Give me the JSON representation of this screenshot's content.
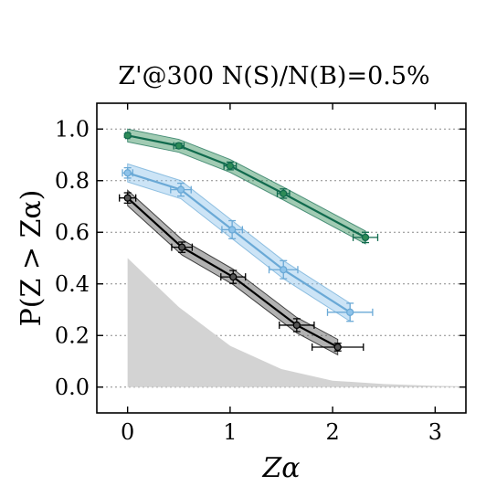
{
  "chart_data": {
    "type": "line",
    "title": "Z'@300 N(S)/N(B)=0.5%",
    "ylabel": "P(Z > Zα)",
    "xlabel": "Zα",
    "xlim": [
      -0.3,
      3.3
    ],
    "ylim": [
      -0.1,
      1.1
    ],
    "xticks": [
      0,
      1,
      2,
      3
    ],
    "yticks": [
      0.0,
      0.2,
      0.4,
      0.6,
      0.8,
      1.0
    ],
    "grid": "horizontal dotted",
    "background_area": {
      "color": "#d3d3d3",
      "x": [
        0.0,
        0.5,
        1.0,
        1.5,
        2.0,
        2.5,
        3.0,
        3.3
      ],
      "y": [
        0.5,
        0.31,
        0.16,
        0.07,
        0.025,
        0.012,
        0.005,
        0.003
      ]
    },
    "series": [
      {
        "color": "#116b4e",
        "band_color": "#2e8b57",
        "band_width": 0.025,
        "x": [
          0.0,
          0.5,
          1.0,
          1.52,
          2.32
        ],
        "y": [
          0.975,
          0.935,
          0.857,
          0.75,
          0.58
        ],
        "xerr": [
          0.02,
          0.05,
          0.06,
          0.06,
          0.12
        ],
        "yerr": [
          0.007,
          0.01,
          0.015,
          0.018,
          0.02
        ]
      },
      {
        "color": "#6aa9d6",
        "band_color": "#8ec3ea",
        "band_width": 0.035,
        "x": [
          0.0,
          0.52,
          1.02,
          1.52,
          2.17
        ],
        "y": [
          0.83,
          0.765,
          0.61,
          0.455,
          0.29
        ],
        "xerr": [
          0.05,
          0.1,
          0.1,
          0.14,
          0.22
        ],
        "yerr": [
          0.02,
          0.025,
          0.035,
          0.035,
          0.035
        ]
      },
      {
        "color": "#000000",
        "band_color": "#555555",
        "band_width": 0.03,
        "x": [
          0.0,
          0.53,
          1.03,
          1.65,
          2.05
        ],
        "y": [
          0.733,
          0.542,
          0.427,
          0.24,
          0.155
        ],
        "xerr": [
          0.08,
          0.1,
          0.12,
          0.17,
          0.25
        ],
        "yerr": [
          0.02,
          0.02,
          0.025,
          0.025,
          0.015
        ]
      }
    ]
  }
}
